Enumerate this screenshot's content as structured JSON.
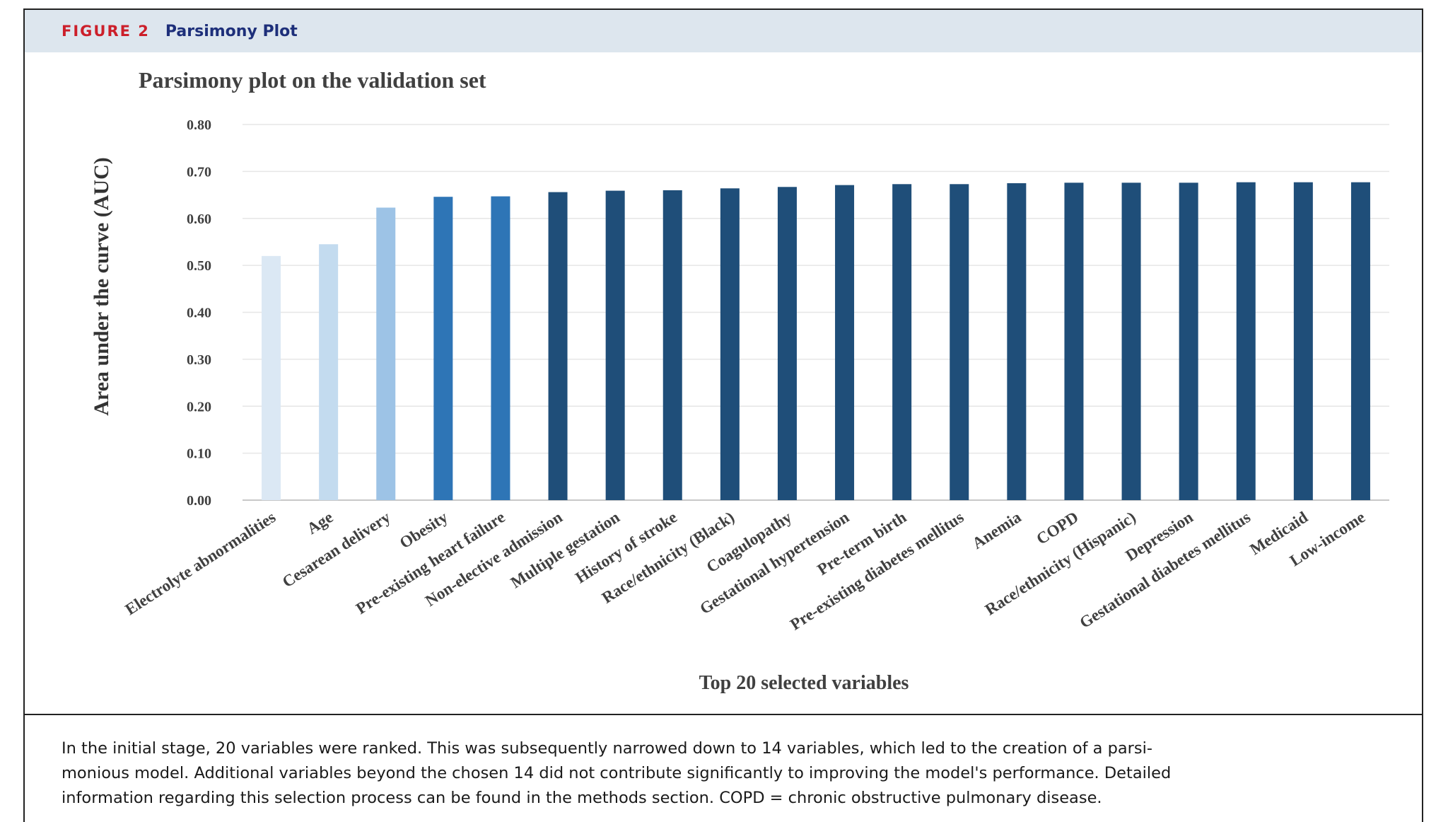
{
  "figure": {
    "label": "FIGURE 2",
    "title": "Parsimony Plot"
  },
  "chart_data": {
    "type": "bar",
    "title": "Parsimony plot on the validation set",
    "xlabel": "Top 20 selected variables",
    "ylabel": "Area under the curve (AUC)",
    "ylim": [
      0,
      0.8
    ],
    "yticks": [
      "0.00",
      "0.10",
      "0.20",
      "0.30",
      "0.40",
      "0.50",
      "0.60",
      "0.70",
      "0.80"
    ],
    "grid": true,
    "categories": [
      "Electrolyte abnormalities",
      "Age",
      "Cesarean delivery",
      "Obesity",
      "Pre-existing heart failure",
      "Non-elective admission",
      "Multiple gestation",
      "History of stroke",
      "Race/ethnicity (Black)",
      "Coagulopathy",
      "Gestational hypertension",
      "Pre-term birth",
      "Pre-existing diabetes mellitus",
      "Anemia",
      "COPD",
      "Race/ethnicity (Hispanic)",
      "Depression",
      "Gestational diabetes mellitus",
      "Medicaid",
      "Low-income"
    ],
    "values": [
      0.52,
      0.545,
      0.623,
      0.646,
      0.647,
      0.656,
      0.659,
      0.66,
      0.664,
      0.667,
      0.671,
      0.673,
      0.673,
      0.675,
      0.676,
      0.676,
      0.676,
      0.677,
      0.677,
      0.677
    ],
    "colors": [
      "#dbe8f4",
      "#c3dbef",
      "#9dc3e6",
      "#2e75b6",
      "#2e75b6",
      "#1f4e79",
      "#1f4e79",
      "#1f4e79",
      "#1f4e79",
      "#1f4e79",
      "#1f4e79",
      "#1f4e79",
      "#1f4e79",
      "#1f4e79",
      "#1f4e79",
      "#1f4e79",
      "#1f4e79",
      "#1f4e79",
      "#1f4e79",
      "#1f4e79"
    ]
  },
  "caption": {
    "lines": [
      "In the initial stage, 20 variables were ranked. This was subsequently narrowed down to 14 variables, which led to the creation of a parsi-",
      "monious model. Additional variables beyond the chosen 14 did not contribute significantly to improving the model's performance. Detailed",
      "information regarding this selection process can be found in the methods section. COPD = chronic obstructive pulmonary disease."
    ]
  }
}
